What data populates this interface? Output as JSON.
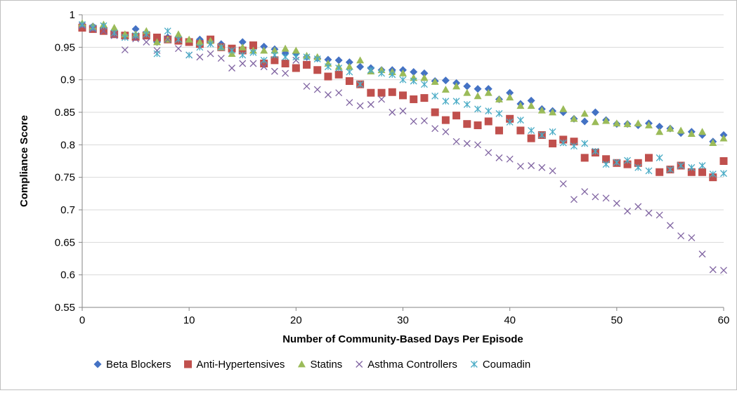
{
  "chart_data": {
    "type": "scatter",
    "title": "",
    "xlabel": "Number of Community-Based Days Per Episode",
    "ylabel": "Compliance Score",
    "xlim": [
      0,
      60
    ],
    "ylim": [
      0.55,
      1
    ],
    "xticks": [
      0,
      10,
      20,
      30,
      40,
      50,
      60
    ],
    "yticks": [
      0.55,
      0.6,
      0.65,
      0.7,
      0.75,
      0.8,
      0.85,
      0.9,
      0.95,
      1
    ],
    "ytick_labels": [
      "0.55",
      "0.6",
      "0.65",
      "0.7",
      "0.75",
      "0.8",
      "0.85",
      "0.9",
      "0.95",
      "1"
    ],
    "grid": "horizontal",
    "legend_position": "bottom",
    "series": [
      {
        "name": "Beta Blockers",
        "marker": "diamond",
        "color": "#4472C4",
        "x": [
          0,
          1,
          2,
          3,
          4,
          5,
          6,
          7,
          8,
          9,
          10,
          11,
          12,
          13,
          14,
          15,
          16,
          17,
          18,
          19,
          20,
          21,
          22,
          23,
          24,
          25,
          26,
          27,
          28,
          29,
          30,
          31,
          32,
          33,
          34,
          35,
          36,
          37,
          38,
          39,
          40,
          41,
          42,
          43,
          44,
          45,
          46,
          47,
          48,
          49,
          50,
          51,
          52,
          53,
          54,
          55,
          56,
          57,
          58,
          59,
          60
        ],
        "y": [
          0.985,
          0.982,
          0.98,
          0.972,
          0.968,
          0.978,
          0.97,
          0.958,
          0.965,
          0.963,
          0.958,
          0.962,
          0.958,
          0.955,
          0.945,
          0.958,
          0.95,
          0.951,
          0.947,
          0.941,
          0.94,
          0.935,
          0.933,
          0.931,
          0.93,
          0.927,
          0.92,
          0.918,
          0.915,
          0.915,
          0.915,
          0.912,
          0.91,
          0.898,
          0.899,
          0.895,
          0.89,
          0.886,
          0.886,
          0.87,
          0.88,
          0.863,
          0.868,
          0.855,
          0.852,
          0.85,
          0.84,
          0.836,
          0.85,
          0.838,
          0.832,
          0.832,
          0.83,
          0.833,
          0.828,
          0.825,
          0.818,
          0.82,
          0.815,
          0.805,
          0.815
        ]
      },
      {
        "name": "Anti-Hypertensives",
        "marker": "square",
        "color": "#C0504D",
        "x": [
          0,
          1,
          2,
          3,
          4,
          5,
          6,
          7,
          8,
          9,
          10,
          11,
          12,
          13,
          14,
          15,
          16,
          17,
          18,
          19,
          20,
          21,
          22,
          23,
          24,
          25,
          26,
          27,
          28,
          29,
          30,
          31,
          32,
          33,
          34,
          35,
          36,
          37,
          38,
          39,
          40,
          41,
          42,
          43,
          44,
          45,
          46,
          47,
          48,
          49,
          50,
          51,
          52,
          53,
          54,
          55,
          56,
          57,
          58,
          59,
          60
        ],
        "y": [
          0.98,
          0.978,
          0.975,
          0.97,
          0.968,
          0.966,
          0.968,
          0.965,
          0.962,
          0.96,
          0.958,
          0.955,
          0.962,
          0.95,
          0.948,
          0.945,
          0.953,
          0.925,
          0.93,
          0.925,
          0.918,
          0.923,
          0.915,
          0.905,
          0.908,
          0.898,
          0.893,
          0.88,
          0.88,
          0.881,
          0.876,
          0.87,
          0.872,
          0.85,
          0.838,
          0.845,
          0.832,
          0.83,
          0.836,
          0.822,
          0.84,
          0.822,
          0.81,
          0.815,
          0.802,
          0.808,
          0.805,
          0.78,
          0.788,
          0.778,
          0.772,
          0.77,
          0.772,
          0.78,
          0.758,
          0.762,
          0.768,
          0.758,
          0.758,
          0.75,
          0.775
        ]
      },
      {
        "name": "Statins",
        "marker": "triangle",
        "color": "#9BBB59",
        "x": [
          0,
          1,
          2,
          3,
          4,
          5,
          6,
          7,
          8,
          9,
          10,
          11,
          12,
          13,
          14,
          15,
          16,
          17,
          18,
          19,
          20,
          21,
          22,
          23,
          24,
          25,
          26,
          27,
          28,
          29,
          30,
          31,
          32,
          33,
          34,
          35,
          36,
          37,
          38,
          39,
          40,
          41,
          42,
          43,
          44,
          45,
          46,
          47,
          48,
          49,
          50,
          51,
          52,
          53,
          54,
          55,
          56,
          57,
          58,
          59,
          60
        ],
        "y": [
          0.987,
          0.982,
          0.985,
          0.98,
          0.97,
          0.97,
          0.975,
          0.958,
          0.962,
          0.97,
          0.962,
          0.958,
          0.96,
          0.95,
          0.94,
          0.95,
          0.945,
          0.945,
          0.945,
          0.948,
          0.945,
          0.937,
          0.935,
          0.925,
          0.92,
          0.92,
          0.93,
          0.913,
          0.915,
          0.912,
          0.91,
          0.903,
          0.903,
          0.897,
          0.885,
          0.89,
          0.88,
          0.875,
          0.88,
          0.87,
          0.873,
          0.86,
          0.86,
          0.853,
          0.85,
          0.855,
          0.84,
          0.848,
          0.835,
          0.837,
          0.833,
          0.832,
          0.833,
          0.83,
          0.82,
          0.825,
          0.822,
          0.817,
          0.82,
          0.803,
          0.81
        ]
      },
      {
        "name": "Asthma Controllers",
        "marker": "x",
        "color": "#8064A2",
        "x": [
          0,
          1,
          2,
          3,
          4,
          5,
          6,
          7,
          8,
          9,
          10,
          11,
          12,
          13,
          14,
          15,
          16,
          17,
          18,
          19,
          20,
          21,
          22,
          23,
          24,
          25,
          26,
          27,
          28,
          29,
          30,
          31,
          32,
          33,
          34,
          35,
          36,
          37,
          38,
          39,
          40,
          41,
          42,
          43,
          44,
          45,
          46,
          47,
          48,
          49,
          50,
          51,
          52,
          53,
          54,
          55,
          56,
          57,
          58,
          59,
          60
        ],
        "y": [
          0.983,
          0.978,
          0.975,
          0.968,
          0.946,
          0.963,
          0.958,
          0.945,
          0.962,
          0.948,
          0.938,
          0.935,
          0.94,
          0.933,
          0.918,
          0.925,
          0.925,
          0.92,
          0.913,
          0.91,
          0.93,
          0.89,
          0.885,
          0.877,
          0.88,
          0.865,
          0.86,
          0.862,
          0.87,
          0.85,
          0.852,
          0.836,
          0.837,
          0.825,
          0.82,
          0.805,
          0.802,
          0.8,
          0.788,
          0.78,
          0.778,
          0.767,
          0.768,
          0.765,
          0.76,
          0.74,
          0.716,
          0.728,
          0.72,
          0.718,
          0.71,
          0.698,
          0.705,
          0.695,
          0.692,
          0.676,
          0.66,
          0.657,
          0.632,
          0.608,
          0.607
        ]
      },
      {
        "name": "Coumadin",
        "marker": "star",
        "color": "#4BACC6",
        "x": [
          0,
          1,
          2,
          3,
          4,
          5,
          6,
          7,
          8,
          9,
          10,
          11,
          12,
          13,
          14,
          15,
          16,
          17,
          18,
          19,
          20,
          21,
          22,
          23,
          24,
          25,
          26,
          27,
          28,
          29,
          30,
          31,
          32,
          33,
          34,
          35,
          36,
          37,
          38,
          39,
          40,
          41,
          42,
          43,
          44,
          45,
          46,
          47,
          48,
          49,
          50,
          51,
          52,
          53,
          54,
          55,
          56,
          57,
          58,
          59,
          60
        ],
        "y": [
          0.985,
          0.98,
          0.983,
          0.972,
          0.965,
          0.968,
          0.97,
          0.94,
          0.975,
          0.962,
          0.938,
          0.95,
          0.955,
          0.95,
          0.945,
          0.938,
          0.942,
          0.93,
          0.938,
          0.935,
          0.935,
          0.935,
          0.932,
          0.92,
          0.918,
          0.912,
          0.893,
          0.915,
          0.91,
          0.908,
          0.9,
          0.898,
          0.893,
          0.875,
          0.867,
          0.867,
          0.862,
          0.855,
          0.852,
          0.848,
          0.835,
          0.838,
          0.822,
          0.815,
          0.82,
          0.803,
          0.798,
          0.802,
          0.79,
          0.77,
          0.773,
          0.776,
          0.765,
          0.76,
          0.78,
          0.762,
          0.768,
          0.765,
          0.768,
          0.755,
          0.756
        ]
      }
    ]
  }
}
